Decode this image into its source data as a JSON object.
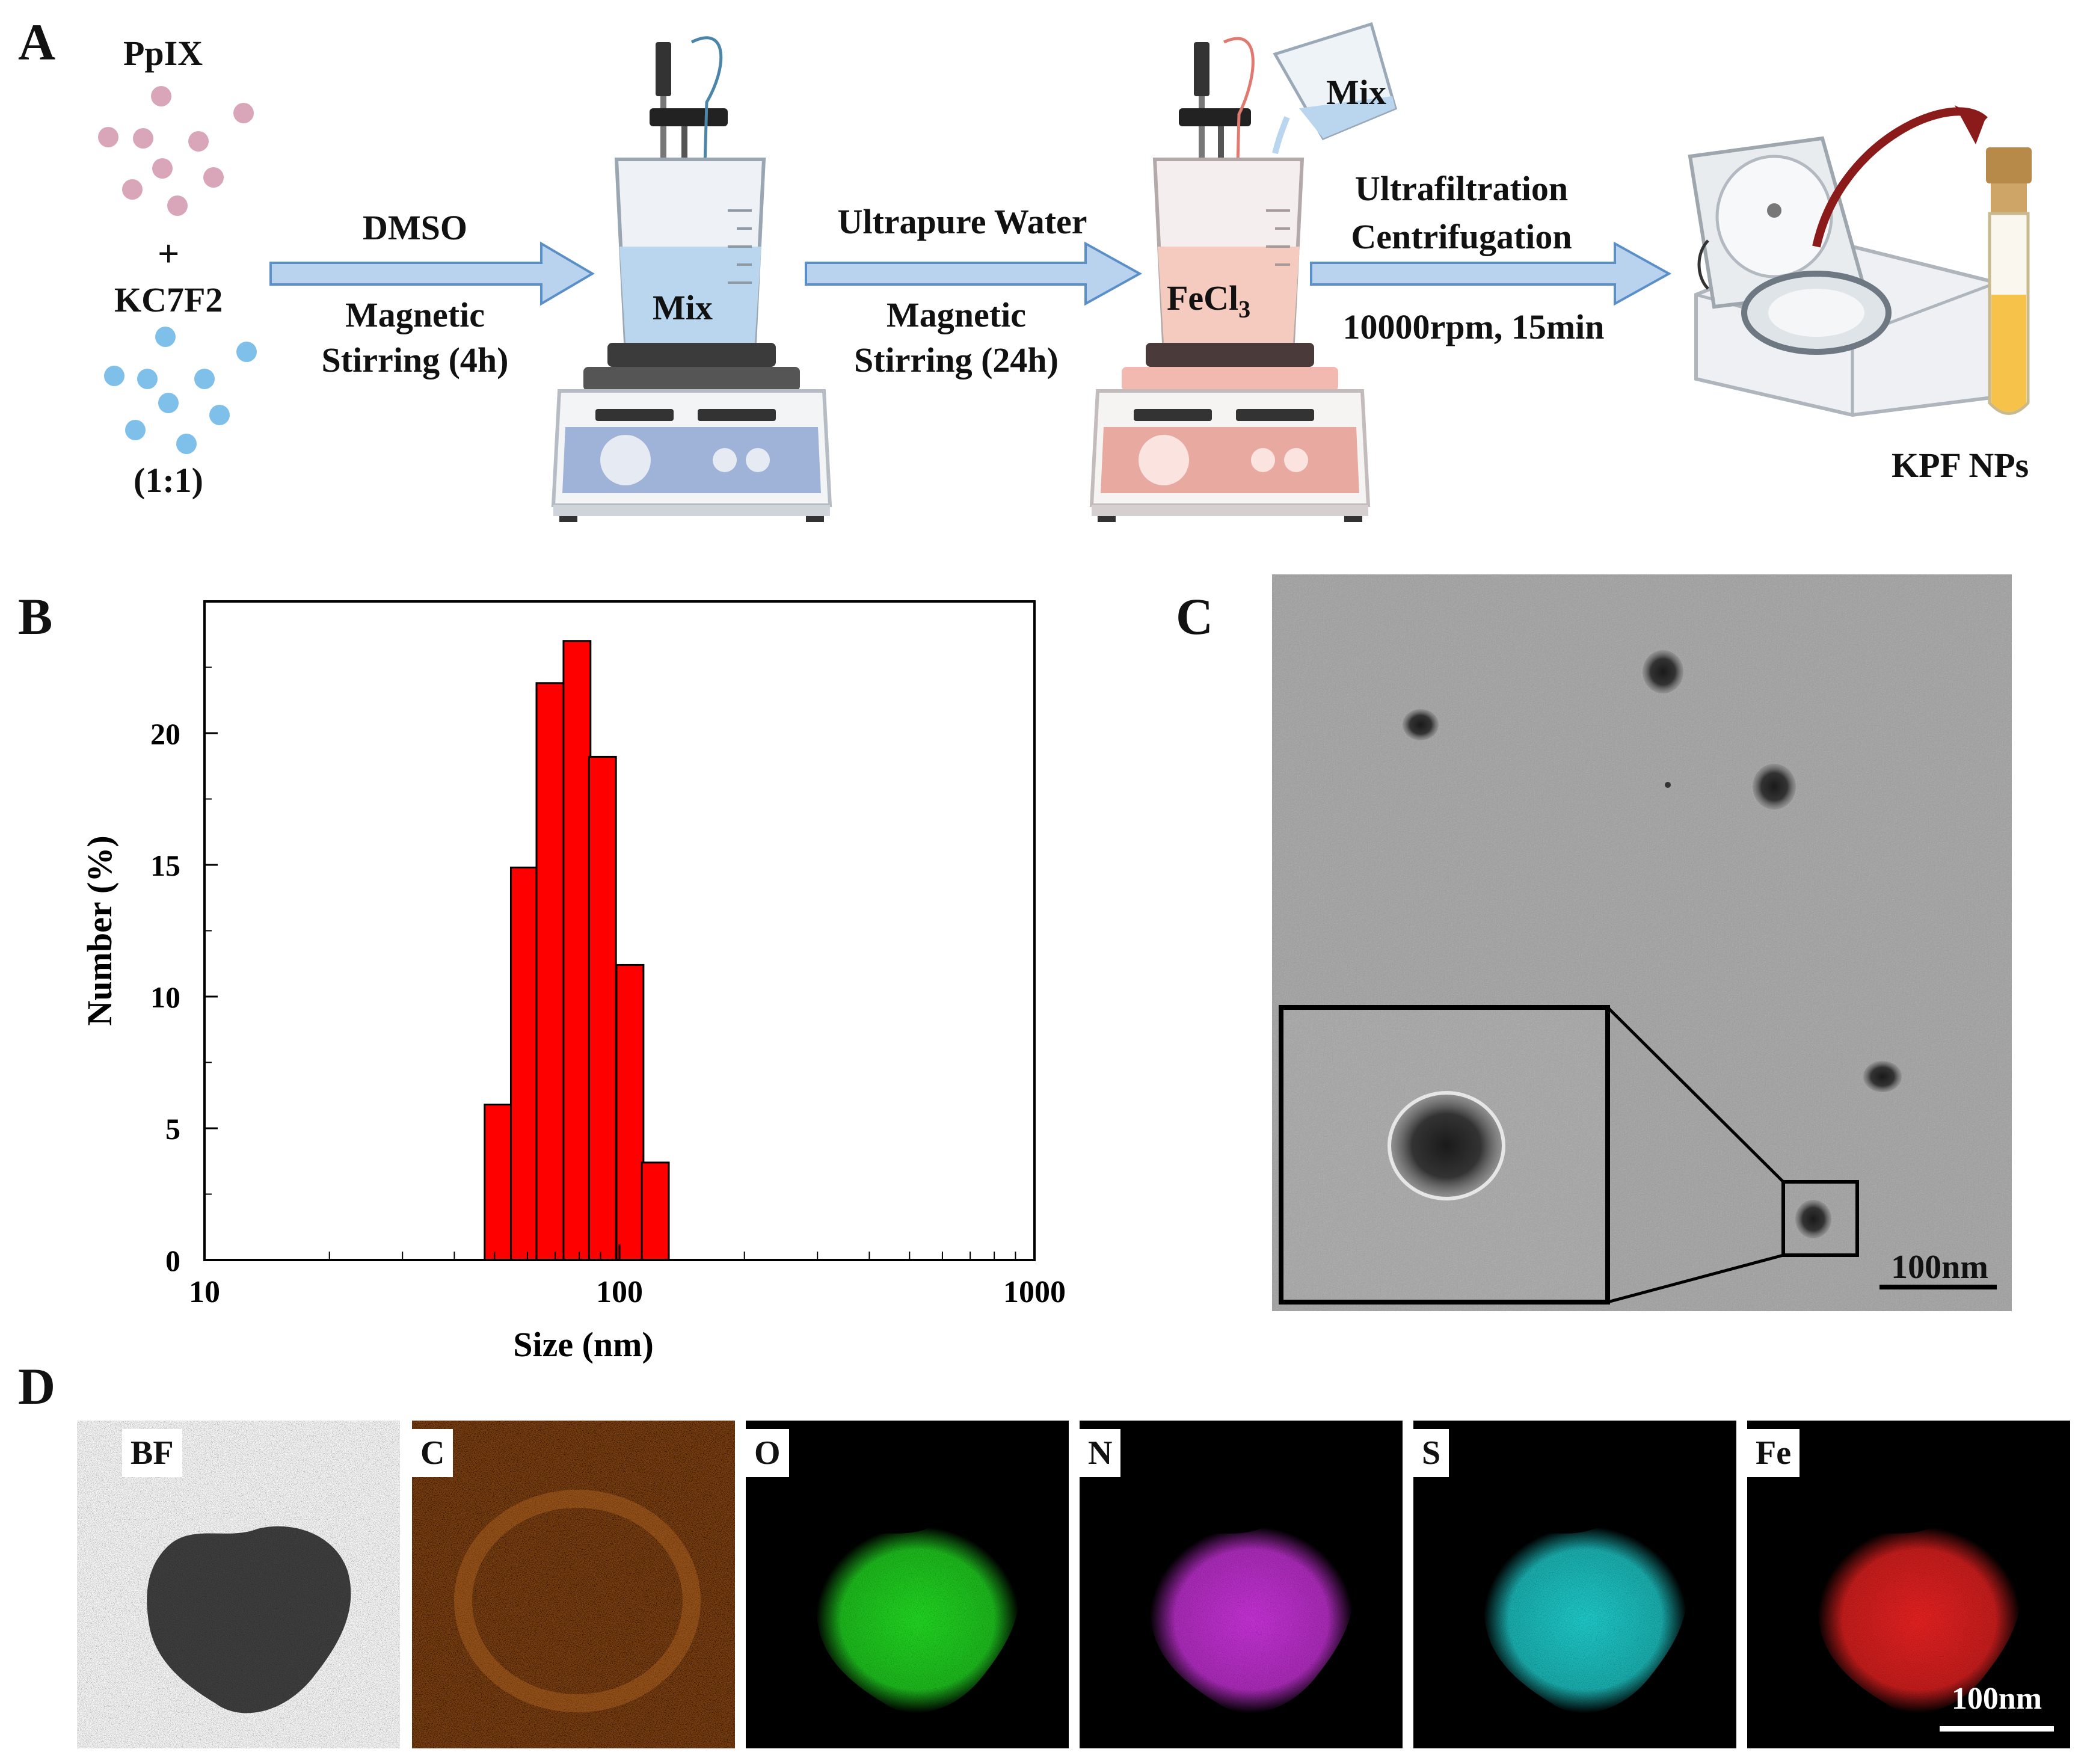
{
  "panels": {
    "a": "A",
    "b": "B",
    "c": "C",
    "d": "D"
  },
  "scheme": {
    "ppix": "PpIX",
    "plus": "+",
    "kc7f2": "KC7F2",
    "ratio": "(1:1)",
    "step1_top": "DMSO",
    "step1_bottom": [
      "Magnetic",
      "Stirring (4h)"
    ],
    "beaker1_label": "Mix",
    "step2_top": "Ultrapure Water",
    "step2_bottom": [
      "Magnetic",
      "Stirring (24h)"
    ],
    "beaker2_label_main": "FeCl",
    "beaker2_label_sub": "3",
    "pour_label": "Mix",
    "step3_top": [
      "Ultrafiltration",
      "Centrifugation"
    ],
    "step3_bottom": "10000rpm, 15min",
    "product": "KPF NPs",
    "colors": {
      "ppix_dot": "#d8a6b8",
      "kc7f2_dot": "#7fc0ea",
      "arrow_fill": "#b9d3ee",
      "arrow_stroke": "#5b8fc7",
      "stirrer1_base": "#9fb3d9",
      "stirrer2_base": "#e8a9a0"
    }
  },
  "chart_data": {
    "type": "bar",
    "xscale": "log",
    "xlim": [
      10,
      1000
    ],
    "ylim": [
      0,
      25
    ],
    "xticks": [
      "10",
      "100",
      "1000"
    ],
    "yticks": [
      "0",
      "5",
      "10",
      "15",
      "20"
    ],
    "xlabel": "Size (nm)",
    "ylabel": "Number (%)",
    "bar_color": "#ff0000",
    "bars": [
      {
        "x": 51,
        "y": 5.9
      },
      {
        "x": 59,
        "y": 14.9
      },
      {
        "x": 68,
        "y": 21.9
      },
      {
        "x": 79,
        "y": 23.5
      },
      {
        "x": 91,
        "y": 19.1
      },
      {
        "x": 106,
        "y": 11.2
      },
      {
        "x": 122,
        "y": 3.7
      }
    ]
  },
  "tem": {
    "scale_bar": "100nm"
  },
  "mapping": {
    "tiles": [
      {
        "label": "BF",
        "color": "#333333"
      },
      {
        "label": "C",
        "color": "#e0842a"
      },
      {
        "label": "O",
        "color": "#22dd22"
      },
      {
        "label": "N",
        "color": "#cc33dd"
      },
      {
        "label": "S",
        "color": "#1fd0d0"
      },
      {
        "label": "Fe",
        "color": "#ee2222"
      }
    ],
    "scale_bar": "100nm"
  }
}
